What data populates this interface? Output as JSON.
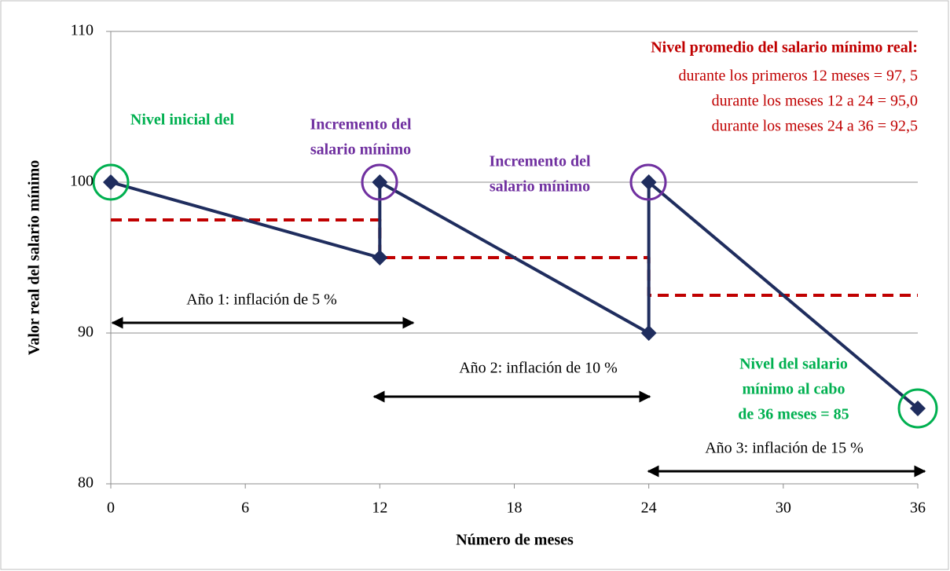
{
  "chart_data": {
    "type": "line",
    "x_label": "Número de meses",
    "y_label": "Valor real del salario mínimo",
    "xlim": [
      0,
      36
    ],
    "xticks": [
      0,
      6,
      12,
      18,
      24,
      30,
      36
    ],
    "ylim": [
      80,
      110
    ],
    "yticks": [
      80,
      90,
      100,
      110
    ],
    "grid": true,
    "series": [
      {
        "name": "Salario mínimo real",
        "color": "#1f2d5e",
        "style": "solid",
        "markers": true,
        "x": [
          0,
          12,
          12,
          24,
          24,
          36
        ],
        "values": [
          100,
          95,
          100,
          90,
          100,
          85
        ]
      },
      {
        "name": "Nivel promedio",
        "color": "#c00000",
        "style": "dashed",
        "markers": false,
        "x": [
          0,
          12,
          12,
          24,
          24,
          36
        ],
        "values": [
          97.5,
          97.5,
          95,
          95,
          92.5,
          92.5
        ]
      }
    ],
    "annotations": [
      {
        "lines": [
          "Nivel inicial del"
        ],
        "color": "#00b050",
        "bold": true
      },
      {
        "lines": [
          "Incremento del",
          "salario mínimo"
        ],
        "color": "#7030a0",
        "bold": true
      },
      {
        "lines": [
          "Incremento del",
          "salario mínimo"
        ],
        "color": "#7030a0",
        "bold": true
      },
      {
        "lines": [
          "Nivel promedio del salario mínimo real:"
        ],
        "color": "#c00000",
        "bold": true
      },
      {
        "lines": [
          "durante los primeros 12 meses = 97, 5",
          "durante los meses 12 a 24 = 95,0",
          "durante los meses 24 a 36 = 92,5"
        ],
        "color": "#c00000",
        "bold": false
      },
      {
        "lines": [
          "Año 1: inflación de 5 %"
        ],
        "color": "#000000",
        "bold": false
      },
      {
        "lines": [
          "Año 2: inflación de 10 %"
        ],
        "color": "#000000",
        "bold": false
      },
      {
        "lines": [
          "Nivel del salario",
          "mínimo al cabo",
          "de 36 meses = 85"
        ],
        "color": "#00b050",
        "bold": true
      },
      {
        "lines": [
          "Año 3: inflación de 15 %"
        ],
        "color": "#000000",
        "bold": false
      }
    ]
  }
}
